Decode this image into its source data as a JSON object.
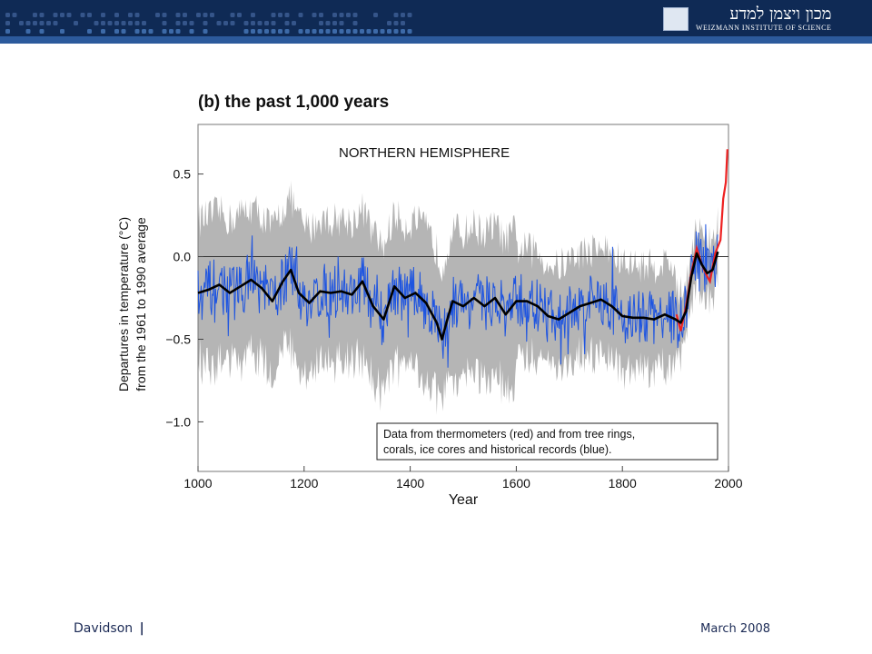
{
  "header": {
    "logo_hebrew": "מכון ויצמן למדע",
    "logo_english": "WEIZMANN INSTITUTE OF SCIENCE"
  },
  "footer": {
    "author": "Davidson",
    "separator": "|",
    "date": "March 2008"
  },
  "colors": {
    "header_bg": "#0f2a55",
    "header_stripe": "#2c5a9c",
    "envelope": "#b5b5b5",
    "proxy_series": "#1f55e0",
    "thermometer_series": "#ee2222",
    "smoothed": "#000000"
  },
  "chart_data": {
    "type": "line",
    "title": "(b) the past 1,000 years",
    "subtitle": "NORTHERN HEMISPHERE",
    "xlabel": "Year",
    "ylabel_line1": "Departures in temperature (°C)",
    "ylabel_line2": "from the 1961 to 1990 average",
    "xlim": [
      1000,
      2000
    ],
    "ylim": [
      -1.3,
      0.8
    ],
    "xticks": [
      {
        "value": 1000,
        "label": "1000"
      },
      {
        "value": 1200,
        "label": "1200"
      },
      {
        "value": 1400,
        "label": "1400"
      },
      {
        "value": 1600,
        "label": "1600"
      },
      {
        "value": 1800,
        "label": "1800"
      },
      {
        "value": 2000,
        "label": "2000"
      }
    ],
    "yticks": [
      {
        "value": 0.5,
        "label": "0.5"
      },
      {
        "value": 0.0,
        "label": "0.0"
      },
      {
        "value": -0.5,
        "label": "−0.5"
      },
      {
        "value": -1.0,
        "label": "−1.0"
      }
    ],
    "zero_line": 0.0,
    "legend_line1": "Data from thermometers (red) and from tree rings,",
    "legend_line2": "corals, ice cores and historical records (blue).",
    "legend_position": "bottom-right",
    "series": [
      {
        "description": "smoothed proxy reconstruction",
        "color": "#000000",
        "x": [
          1000,
          1020,
          1040,
          1060,
          1080,
          1100,
          1120,
          1140,
          1160,
          1175,
          1190,
          1210,
          1230,
          1250,
          1270,
          1290,
          1310,
          1330,
          1350,
          1370,
          1390,
          1410,
          1430,
          1450,
          1460,
          1470,
          1480,
          1500,
          1520,
          1540,
          1560,
          1580,
          1600,
          1620,
          1640,
          1660,
          1680,
          1700,
          1720,
          1740,
          1760,
          1780,
          1800,
          1820,
          1840,
          1860,
          1880,
          1900,
          1910,
          1920,
          1930,
          1940,
          1950,
          1960,
          1970,
          1980
        ],
        "values": [
          -0.22,
          -0.2,
          -0.17,
          -0.22,
          -0.18,
          -0.14,
          -0.19,
          -0.27,
          -0.15,
          -0.08,
          -0.22,
          -0.28,
          -0.21,
          -0.22,
          -0.21,
          -0.23,
          -0.15,
          -0.3,
          -0.38,
          -0.18,
          -0.25,
          -0.22,
          -0.28,
          -0.4,
          -0.5,
          -0.38,
          -0.27,
          -0.3,
          -0.25,
          -0.3,
          -0.25,
          -0.35,
          -0.27,
          -0.27,
          -0.3,
          -0.36,
          -0.38,
          -0.34,
          -0.3,
          -0.28,
          -0.26,
          -0.3,
          -0.36,
          -0.37,
          -0.37,
          -0.38,
          -0.35,
          -0.38,
          -0.4,
          -0.33,
          -0.12,
          0.02,
          -0.05,
          -0.1,
          -0.08,
          0.03
        ]
      },
      {
        "description": "thermometer record (red)",
        "color": "#ee2222",
        "x": [
          1902,
          1910,
          1920,
          1930,
          1940,
          1950,
          1960,
          1965,
          1975,
          1985,
          1990,
          1995,
          1998
        ],
        "values": [
          -0.35,
          -0.45,
          -0.3,
          -0.1,
          0.05,
          -0.05,
          -0.12,
          -0.15,
          0.02,
          0.1,
          0.35,
          0.45,
          0.65
        ]
      }
    ]
  }
}
